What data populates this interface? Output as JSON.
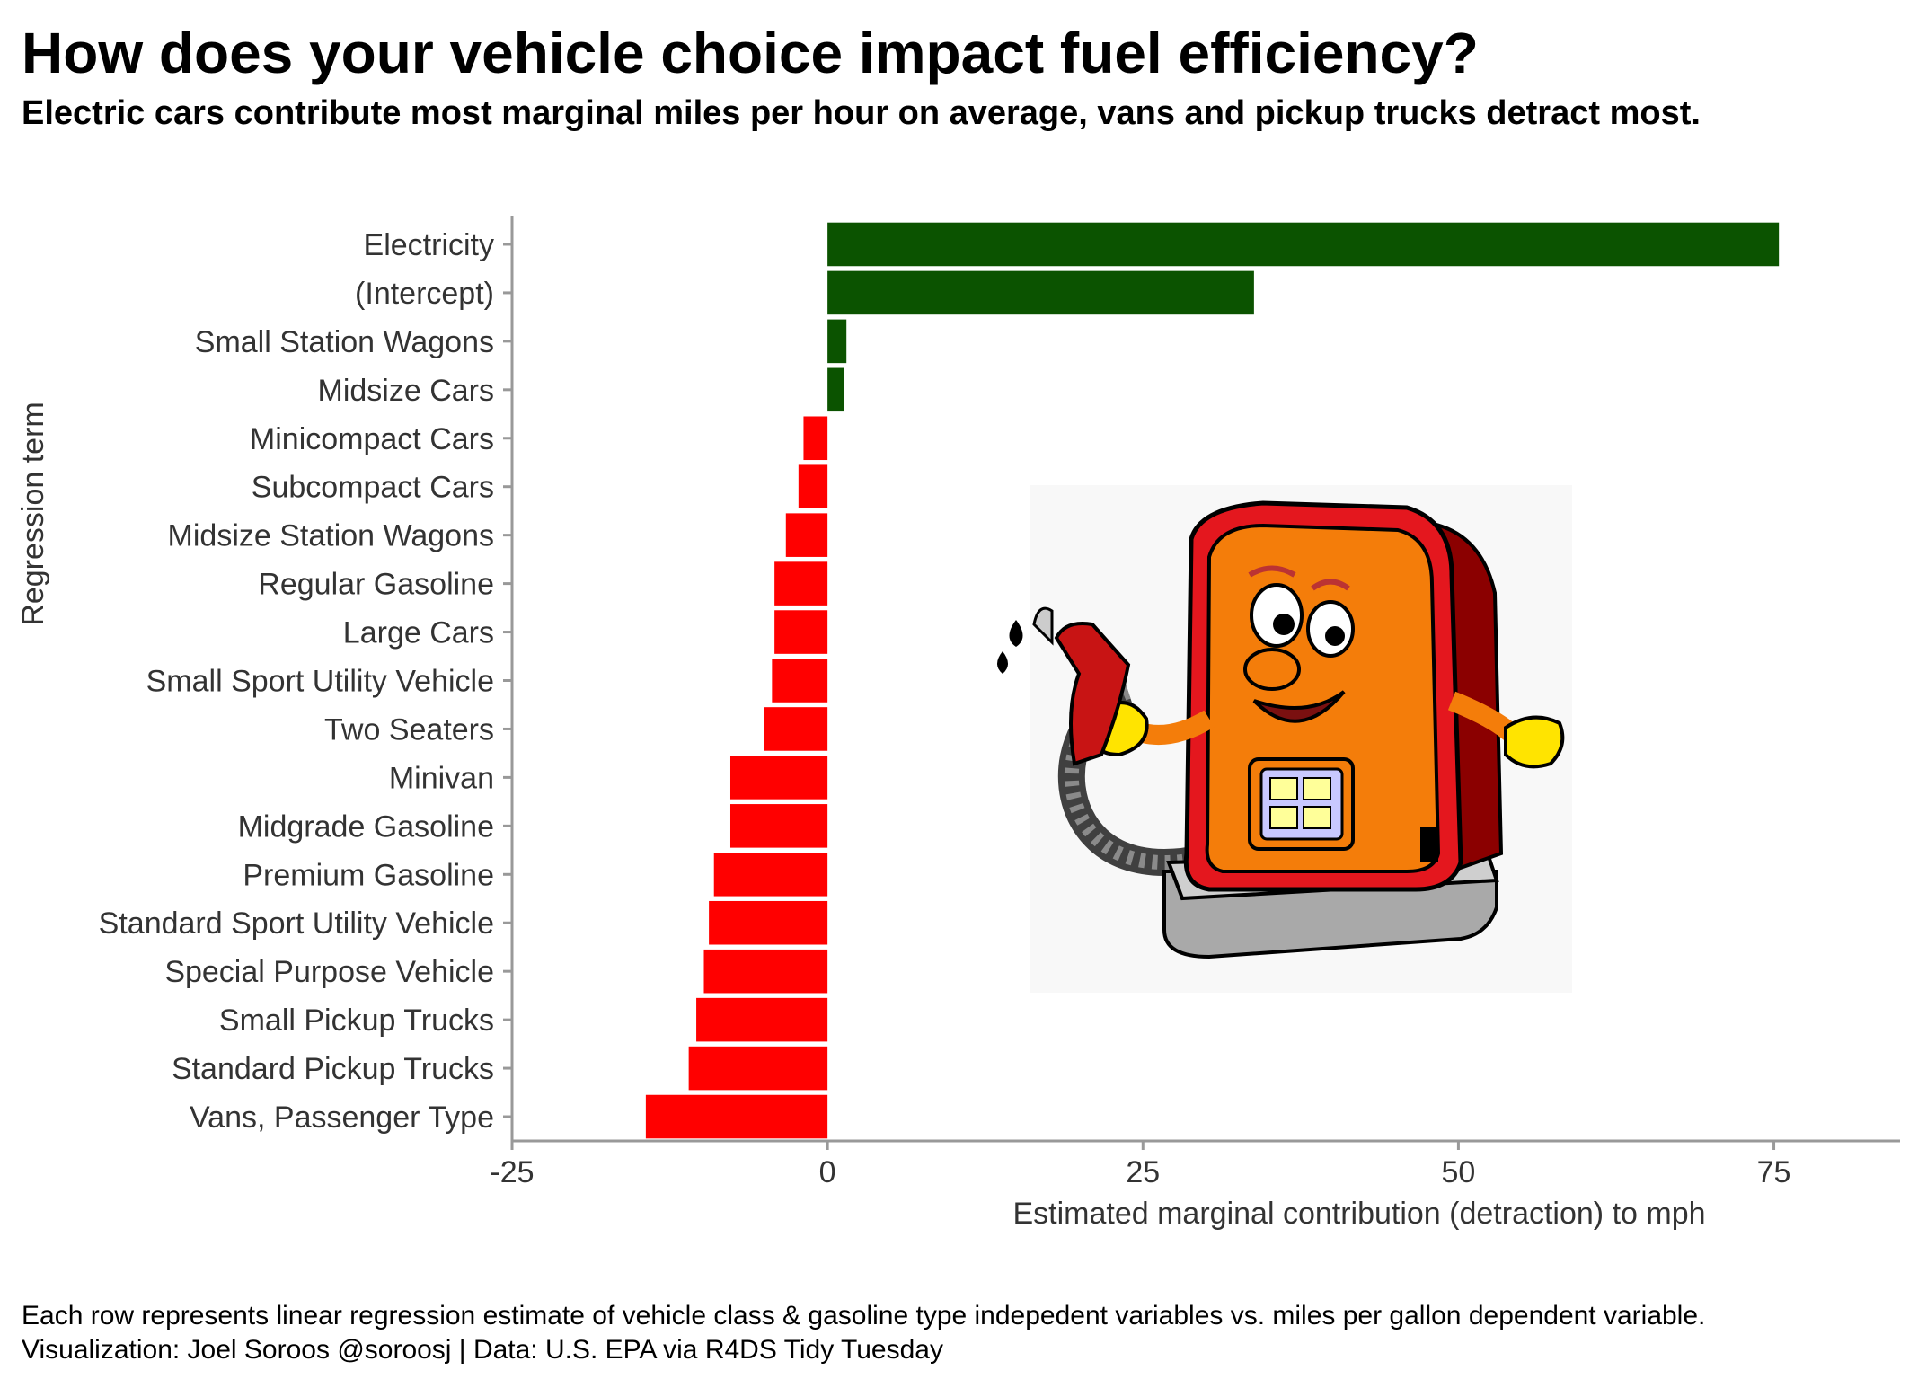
{
  "chart_data": {
    "type": "bar",
    "orientation": "horizontal",
    "title": "How does your vehicle choice impact fuel efficiency?",
    "subtitle": "Electric cars contribute most marginal miles per hour on average, vans and pickup trucks detract most.",
    "xlabel": "Estimated marginal contribution (detraction) to mph",
    "ylabel": "Regression term",
    "xlim": [
      -25,
      85
    ],
    "xticks": [
      -25,
      0,
      25,
      50,
      75
    ],
    "xtick_labels": [
      "-25",
      "0",
      "25",
      "50",
      "75"
    ],
    "categories": [
      "Electricity",
      "(Intercept)",
      "Small Station Wagons",
      "Midsize Cars",
      "Minicompact Cars",
      "Subcompact Cars",
      "Midsize Station Wagons",
      "Regular Gasoline",
      "Large Cars",
      "Small Sport Utility Vehicle",
      "Two Seaters",
      "Minivan",
      "Midgrade Gasoline",
      "Premium Gasoline",
      "Standard Sport Utility Vehicle",
      "Special Purpose Vehicle",
      "Small Pickup Trucks",
      "Standard Pickup Trucks",
      "Vans, Passenger Type"
    ],
    "values": [
      75.4,
      33.8,
      1.5,
      1.3,
      -1.9,
      -2.3,
      -3.3,
      -4.2,
      -4.2,
      -4.4,
      -5.0,
      -7.7,
      -7.7,
      -9.0,
      -9.4,
      -9.8,
      -10.4,
      -11.0,
      -14.4
    ],
    "colors": {
      "positive": "#0b5300",
      "negative": "#ff0000"
    },
    "grid": false
  },
  "caption": {
    "line1": "Each row represents linear regression estimate of vehicle class & gasoline type indepedent variables vs. miles per gallon dependent variable.",
    "line2": "Visualization: Joel Soroos @soroosj  |  Data: U.S. EPA via R4DS Tidy Tuesday"
  },
  "illustration": {
    "icon": "gas-pump-mascot-icon"
  }
}
